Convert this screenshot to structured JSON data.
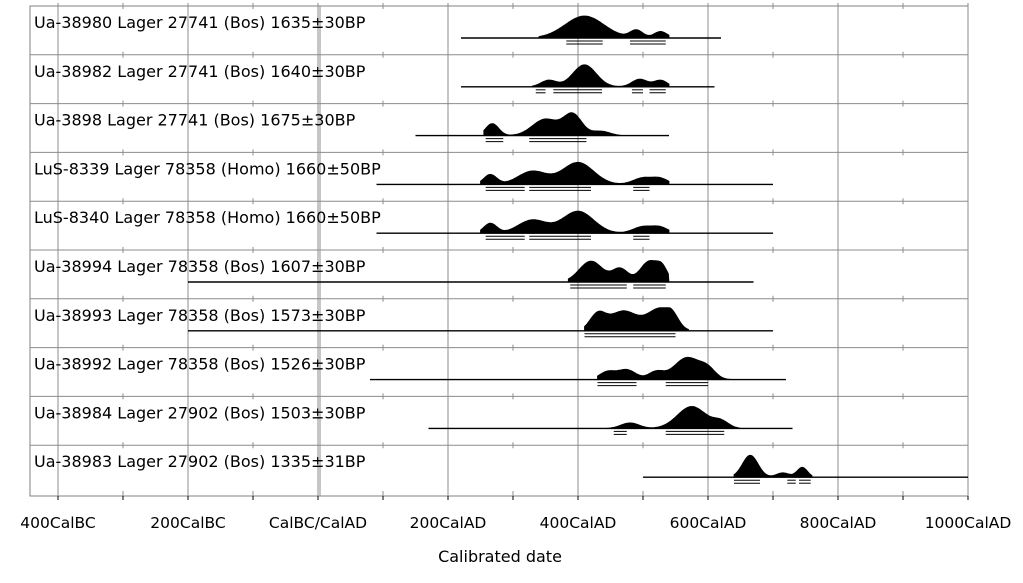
{
  "chart_data": {
    "type": "area",
    "title": "",
    "xlabel": "Calibrated date",
    "ylabel": "",
    "xlim": [
      -400,
      1000
    ],
    "x_ticks": [
      {
        "value": -400,
        "label": "400CalBC"
      },
      {
        "value": -200,
        "label": "200CalBC"
      },
      {
        "value": 0,
        "label": "CalBC/CalAD"
      },
      {
        "value": 200,
        "label": "200CalAD"
      },
      {
        "value": 400,
        "label": "400CalAD"
      },
      {
        "value": 600,
        "label": "600CalAD"
      },
      {
        "value": 800,
        "label": "800CalAD"
      },
      {
        "value": 1000,
        "label": "1000CalAD"
      }
    ],
    "grid": true,
    "series": [
      {
        "name": "Ua-38980 Lager 27741 (Bos)  1635±30BP",
        "line": [
          220,
          620
        ],
        "range": [
          340,
          540
        ],
        "peaks": [
          [
            410,
            30,
            1.0
          ],
          [
            490,
            10,
            0.35
          ],
          [
            527,
            10,
            0.3
          ]
        ],
        "ranges": [
          [
            382,
            438
          ],
          [
            480,
            535
          ]
        ]
      },
      {
        "name": "Ua-38982 Lager 27741 (Bos)  1640±30BP",
        "line": [
          220,
          610
        ],
        "range": [
          330,
          540
        ],
        "peaks": [
          [
            355,
            12,
            0.3
          ],
          [
            410,
            18,
            1.0
          ],
          [
            495,
            12,
            0.35
          ],
          [
            527,
            10,
            0.3
          ]
        ],
        "ranges": [
          [
            335,
            350
          ],
          [
            362,
            437
          ],
          [
            483,
            500
          ],
          [
            510,
            535
          ]
        ]
      },
      {
        "name": "Ua-3898 Lager 27741 (Bos)  1675±30BP",
        "line": [
          150,
          540
        ],
        "range": [
          255,
          465
        ],
        "peaks": [
          [
            268,
            10,
            0.55
          ],
          [
            350,
            20,
            0.75
          ],
          [
            392,
            14,
            0.95
          ],
          [
            435,
            14,
            0.2
          ]
        ],
        "ranges": [
          [
            258,
            285
          ],
          [
            325,
            413
          ]
        ]
      },
      {
        "name": "LuS-8339 Lager 78358 (Homo)  1660±50BP",
        "line": [
          90,
          700
        ],
        "range": [
          250,
          540
        ],
        "peaks": [
          [
            265,
            10,
            0.45
          ],
          [
            330,
            22,
            0.6
          ],
          [
            400,
            24,
            1.0
          ],
          [
            500,
            15,
            0.3
          ],
          [
            527,
            12,
            0.25
          ]
        ],
        "ranges": [
          [
            258,
            318
          ],
          [
            325,
            420
          ],
          [
            485,
            510
          ]
        ]
      },
      {
        "name": "LuS-8340 Lager 78358 (Homo)  1660±50BP",
        "line": [
          90,
          700
        ],
        "range": [
          250,
          540
        ],
        "peaks": [
          [
            265,
            10,
            0.45
          ],
          [
            330,
            22,
            0.6
          ],
          [
            400,
            24,
            1.0
          ],
          [
            500,
            15,
            0.3
          ],
          [
            527,
            12,
            0.25
          ]
        ],
        "ranges": [
          [
            258,
            318
          ],
          [
            325,
            420
          ],
          [
            485,
            510
          ]
        ]
      },
      {
        "name": "Ua-38994 Lager 78358 (Bos)  1607±30BP",
        "line": [
          -200,
          670
        ],
        "range": [
          385,
          540
        ],
        "peaks": [
          [
            420,
            18,
            0.95
          ],
          [
            465,
            12,
            0.6
          ],
          [
            510,
            14,
            0.95
          ],
          [
            530,
            8,
            0.5
          ]
        ],
        "ranges": [
          [
            388,
            475
          ],
          [
            485,
            535
          ]
        ]
      },
      {
        "name": "Ua-38993 Lager 78358 (Bos)  1573±30BP",
        "line": [
          -200,
          700
        ],
        "range": [
          410,
          570
        ],
        "peaks": [
          [
            430,
            12,
            0.7
          ],
          [
            470,
            22,
            0.9
          ],
          [
            525,
            18,
            0.95
          ],
          [
            545,
            10,
            0.45
          ]
        ],
        "ranges": [
          [
            410,
            550
          ]
        ]
      },
      {
        "name": "Ua-38992 Lager 78358 (Bos)  1526±30BP",
        "line": [
          80,
          720
        ],
        "range": [
          430,
          640
        ],
        "peaks": [
          [
            445,
            12,
            0.35
          ],
          [
            475,
            14,
            0.45
          ],
          [
            520,
            12,
            0.35
          ],
          [
            568,
            20,
            1.0
          ],
          [
            600,
            12,
            0.4
          ]
        ],
        "ranges": [
          [
            430,
            490
          ],
          [
            535,
            600
          ]
        ]
      },
      {
        "name": "Ua-38984 Lager 27902 (Bos)  1503±30BP",
        "line": [
          170,
          730
        ],
        "range": [
          445,
          650
        ],
        "peaks": [
          [
            480,
            14,
            0.25
          ],
          [
            575,
            22,
            1.0
          ],
          [
            620,
            12,
            0.3
          ]
        ],
        "ranges": [
          [
            455,
            475
          ],
          [
            535,
            625
          ]
        ]
      },
      {
        "name": "Ua-38983 Lager 27902 (Bos)  1335±31BP",
        "line": [
          500,
          1000
        ],
        "range": [
          640,
          760
        ],
        "peaks": [
          [
            665,
            12,
            1.0
          ],
          [
            715,
            10,
            0.2
          ],
          [
            745,
            8,
            0.45
          ]
        ],
        "ranges": [
          [
            640,
            680
          ],
          [
            722,
            735
          ],
          [
            740,
            758
          ]
        ]
      }
    ]
  }
}
